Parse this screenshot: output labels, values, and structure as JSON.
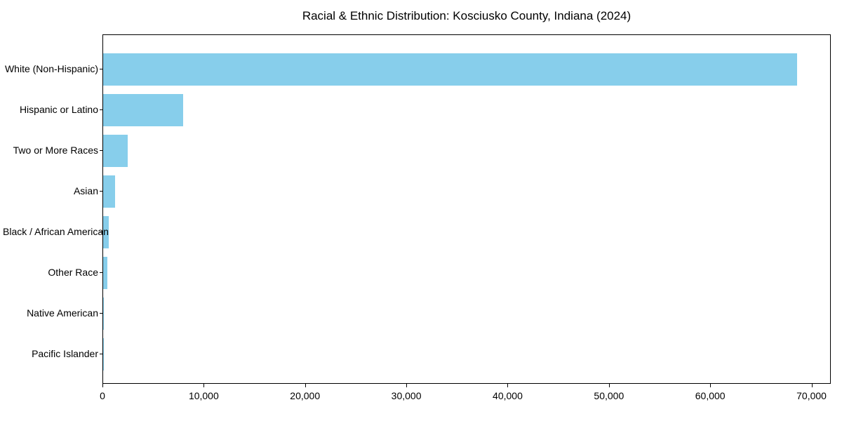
{
  "chart_data": {
    "type": "bar",
    "orientation": "horizontal",
    "title": "Racial & Ethnic Distribution: Kosciusko County, Indiana (2024)",
    "categories": [
      "White (Non-Hispanic)",
      "Hispanic or Latino",
      "Two or More Races",
      "Asian",
      "Black / African American",
      "Other Race",
      "Native American",
      "Pacific Islander"
    ],
    "values": [
      68500,
      7900,
      2400,
      1150,
      580,
      390,
      40,
      10
    ],
    "x_ticks": [
      0,
      10000,
      20000,
      30000,
      40000,
      50000,
      60000,
      70000
    ],
    "x_tick_labels": [
      "0",
      "10,000",
      "20,000",
      "30,000",
      "40,000",
      "50,000",
      "60,000",
      "70,000"
    ],
    "xlim": [
      0,
      71900
    ],
    "xlabel": "",
    "ylabel": "",
    "grid": false,
    "legend": null,
    "bar_color": "#87CEEB",
    "axis_color": "#000000",
    "text_color": "#000000",
    "background_color": "#FFFFFF"
  }
}
